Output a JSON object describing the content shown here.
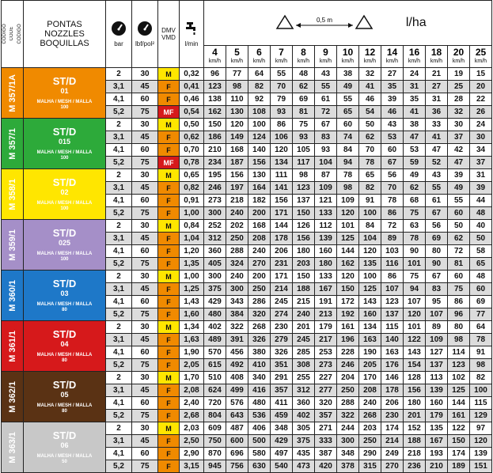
{
  "header": {
    "codes": [
      "CÓDIGO",
      "CODE",
      "CÓDIGO"
    ],
    "nozzles": [
      "PONTAS",
      "NOZZLES",
      "BOQUILLAS"
    ],
    "pressure_bar": "bar",
    "pressure_psi": "lbf/pol²",
    "dmv": "DMV",
    "vmd": "VMD",
    "flow_unit": "l/min",
    "spacing": "0,5 m",
    "rate_unit": "l/ha",
    "speed_unit": "km/h",
    "speeds": [
      "4",
      "5",
      "6",
      "7",
      "8",
      "9",
      "10",
      "12",
      "14",
      "16",
      "18",
      "20",
      "25"
    ]
  },
  "mesh_label": "MALHA / MESH / MALLA",
  "colors": {
    "dmv_M": "#ffe600",
    "dmv_F": "#f08a00",
    "dmv_MF": "#d6191b",
    "shade": "#dcdcdc"
  },
  "groups": [
    {
      "code": "M 357/1A",
      "type": "ST/D",
      "size": "01",
      "mesh": "100",
      "color": "#f08a00",
      "rows": [
        {
          "bar": "2",
          "psi": "30",
          "dmv": "M",
          "lmin": "0,32",
          "v": [
            "96",
            "77",
            "64",
            "55",
            "48",
            "43",
            "38",
            "32",
            "27",
            "24",
            "21",
            "19",
            "15"
          ]
        },
        {
          "bar": "3,1",
          "psi": "45",
          "dmv": "F",
          "lmin": "0,41",
          "v": [
            "123",
            "98",
            "82",
            "70",
            "62",
            "55",
            "49",
            "41",
            "35",
            "31",
            "27",
            "25",
            "20"
          ]
        },
        {
          "bar": "4,1",
          "psi": "60",
          "dmv": "F",
          "lmin": "0,46",
          "v": [
            "138",
            "110",
            "92",
            "79",
            "69",
            "61",
            "55",
            "46",
            "39",
            "35",
            "31",
            "28",
            "22"
          ]
        },
        {
          "bar": "5,2",
          "psi": "75",
          "dmv": "MF",
          "lmin": "0,54",
          "v": [
            "162",
            "130",
            "108",
            "93",
            "81",
            "72",
            "65",
            "54",
            "46",
            "41",
            "36",
            "32",
            "26"
          ]
        }
      ]
    },
    {
      "code": "M 357/1",
      "type": "ST/D",
      "size": "015",
      "mesh": "100",
      "color": "#2daa3a",
      "rows": [
        {
          "bar": "2",
          "psi": "30",
          "dmv": "M",
          "lmin": "0,50",
          "v": [
            "150",
            "120",
            "100",
            "86",
            "75",
            "67",
            "60",
            "50",
            "43",
            "38",
            "33",
            "30",
            "24"
          ]
        },
        {
          "bar": "3,1",
          "psi": "45",
          "dmv": "F",
          "lmin": "0,62",
          "v": [
            "186",
            "149",
            "124",
            "106",
            "93",
            "83",
            "74",
            "62",
            "53",
            "47",
            "41",
            "37",
            "30"
          ]
        },
        {
          "bar": "4,1",
          "psi": "60",
          "dmv": "F",
          "lmin": "0,70",
          "v": [
            "210",
            "168",
            "140",
            "120",
            "105",
            "93",
            "84",
            "70",
            "60",
            "53",
            "47",
            "42",
            "34"
          ]
        },
        {
          "bar": "5,2",
          "psi": "75",
          "dmv": "MF",
          "lmin": "0,78",
          "v": [
            "234",
            "187",
            "156",
            "134",
            "117",
            "104",
            "94",
            "78",
            "67",
            "59",
            "52",
            "47",
            "37"
          ]
        }
      ]
    },
    {
      "code": "M 358/1",
      "type": "ST/D",
      "size": "02",
      "mesh": "100",
      "color": "#ffe600",
      "rows": [
        {
          "bar": "2",
          "psi": "30",
          "dmv": "M",
          "lmin": "0,65",
          "v": [
            "195",
            "156",
            "130",
            "111",
            "98",
            "87",
            "78",
            "65",
            "56",
            "49",
            "43",
            "39",
            "31"
          ]
        },
        {
          "bar": "3,1",
          "psi": "45",
          "dmv": "F",
          "lmin": "0,82",
          "v": [
            "246",
            "197",
            "164",
            "141",
            "123",
            "109",
            "98",
            "82",
            "70",
            "62",
            "55",
            "49",
            "39"
          ]
        },
        {
          "bar": "4,1",
          "psi": "60",
          "dmv": "F",
          "lmin": "0,91",
          "v": [
            "273",
            "218",
            "182",
            "156",
            "137",
            "121",
            "109",
            "91",
            "78",
            "68",
            "61",
            "55",
            "44"
          ]
        },
        {
          "bar": "5,2",
          "psi": "75",
          "dmv": "F",
          "lmin": "1,00",
          "v": [
            "300",
            "240",
            "200",
            "171",
            "150",
            "133",
            "120",
            "100",
            "86",
            "75",
            "67",
            "60",
            "48"
          ]
        }
      ]
    },
    {
      "code": "M 359/1",
      "type": "ST/D",
      "size": "025",
      "mesh": "100",
      "color": "#a58fc8",
      "rows": [
        {
          "bar": "2",
          "psi": "30",
          "dmv": "M",
          "lmin": "0,84",
          "v": [
            "252",
            "202",
            "168",
            "144",
            "126",
            "112",
            "101",
            "84",
            "72",
            "63",
            "56",
            "50",
            "40"
          ]
        },
        {
          "bar": "3,1",
          "psi": "45",
          "dmv": "F",
          "lmin": "1,04",
          "v": [
            "312",
            "250",
            "208",
            "178",
            "156",
            "139",
            "125",
            "104",
            "89",
            "78",
            "69",
            "62",
            "50"
          ]
        },
        {
          "bar": "4,1",
          "psi": "60",
          "dmv": "F",
          "lmin": "1,20",
          "v": [
            "360",
            "288",
            "240",
            "206",
            "180",
            "160",
            "144",
            "120",
            "103",
            "90",
            "80",
            "72",
            "58"
          ]
        },
        {
          "bar": "5,2",
          "psi": "75",
          "dmv": "F",
          "lmin": "1,35",
          "v": [
            "405",
            "324",
            "270",
            "231",
            "203",
            "180",
            "162",
            "135",
            "116",
            "101",
            "90",
            "81",
            "65"
          ]
        }
      ]
    },
    {
      "code": "M 360/1",
      "type": "ST/D",
      "size": "03",
      "mesh": "80",
      "color": "#1e78c8",
      "rows": [
        {
          "bar": "2",
          "psi": "30",
          "dmv": "M",
          "lmin": "1,00",
          "v": [
            "300",
            "240",
            "200",
            "171",
            "150",
            "133",
            "120",
            "100",
            "86",
            "75",
            "67",
            "60",
            "48"
          ]
        },
        {
          "bar": "3,1",
          "psi": "45",
          "dmv": "F",
          "lmin": "1,25",
          "v": [
            "375",
            "300",
            "250",
            "214",
            "188",
            "167",
            "150",
            "125",
            "107",
            "94",
            "83",
            "75",
            "60"
          ]
        },
        {
          "bar": "4,1",
          "psi": "60",
          "dmv": "F",
          "lmin": "1,43",
          "v": [
            "429",
            "343",
            "286",
            "245",
            "215",
            "191",
            "172",
            "143",
            "123",
            "107",
            "95",
            "86",
            "69"
          ]
        },
        {
          "bar": "5,2",
          "psi": "75",
          "dmv": "F",
          "lmin": "1,60",
          "v": [
            "480",
            "384",
            "320",
            "274",
            "240",
            "213",
            "192",
            "160",
            "137",
            "120",
            "107",
            "96",
            "77"
          ]
        }
      ]
    },
    {
      "code": "M 361/1",
      "type": "ST/D",
      "size": "04",
      "mesh": "80",
      "color": "#d6191b",
      "rows": [
        {
          "bar": "2",
          "psi": "30",
          "dmv": "M",
          "lmin": "1,34",
          "v": [
            "402",
            "322",
            "268",
            "230",
            "201",
            "179",
            "161",
            "134",
            "115",
            "101",
            "89",
            "80",
            "64"
          ]
        },
        {
          "bar": "3,1",
          "psi": "45",
          "dmv": "F",
          "lmin": "1,63",
          "v": [
            "489",
            "391",
            "326",
            "279",
            "245",
            "217",
            "196",
            "163",
            "140",
            "122",
            "109",
            "98",
            "78"
          ]
        },
        {
          "bar": "4,1",
          "psi": "60",
          "dmv": "F",
          "lmin": "1,90",
          "v": [
            "570",
            "456",
            "380",
            "326",
            "285",
            "253",
            "228",
            "190",
            "163",
            "143",
            "127",
            "114",
            "91"
          ]
        },
        {
          "bar": "5,2",
          "psi": "75",
          "dmv": "F",
          "lmin": "2,05",
          "v": [
            "615",
            "492",
            "410",
            "351",
            "308",
            "273",
            "246",
            "205",
            "176",
            "154",
            "137",
            "123",
            "98"
          ]
        }
      ]
    },
    {
      "code": "M 362/1",
      "type": "ST/D",
      "size": "05",
      "mesh": "80",
      "color": "#5a3214",
      "rows": [
        {
          "bar": "2",
          "psi": "30",
          "dmv": "M",
          "lmin": "1,70",
          "v": [
            "510",
            "408",
            "340",
            "291",
            "255",
            "227",
            "204",
            "170",
            "146",
            "128",
            "113",
            "102",
            "82"
          ]
        },
        {
          "bar": "3,1",
          "psi": "45",
          "dmv": "F",
          "lmin": "2,08",
          "v": [
            "624",
            "499",
            "416",
            "357",
            "312",
            "277",
            "250",
            "208",
            "178",
            "156",
            "139",
            "125",
            "100"
          ]
        },
        {
          "bar": "4,1",
          "psi": "60",
          "dmv": "F",
          "lmin": "2,40",
          "v": [
            "720",
            "576",
            "480",
            "411",
            "360",
            "320",
            "288",
            "240",
            "206",
            "180",
            "160",
            "144",
            "115"
          ]
        },
        {
          "bar": "5,2",
          "psi": "75",
          "dmv": "F",
          "lmin": "2,68",
          "v": [
            "804",
            "643",
            "536",
            "459",
            "402",
            "357",
            "322",
            "268",
            "230",
            "201",
            "179",
            "161",
            "129"
          ]
        }
      ]
    },
    {
      "code": "M 363/1",
      "type": "ST/D",
      "size": "06",
      "mesh": "50",
      "color": "#c8c8c8",
      "rows": [
        {
          "bar": "2",
          "psi": "30",
          "dmv": "M",
          "lmin": "2,03",
          "v": [
            "609",
            "487",
            "406",
            "348",
            "305",
            "271",
            "244",
            "203",
            "174",
            "152",
            "135",
            "122",
            "97"
          ]
        },
        {
          "bar": "3,1",
          "psi": "45",
          "dmv": "F",
          "lmin": "2,50",
          "v": [
            "750",
            "600",
            "500",
            "429",
            "375",
            "333",
            "300",
            "250",
            "214",
            "188",
            "167",
            "150",
            "120"
          ]
        },
        {
          "bar": "4,1",
          "psi": "60",
          "dmv": "F",
          "lmin": "2,90",
          "v": [
            "870",
            "696",
            "580",
            "497",
            "435",
            "387",
            "348",
            "290",
            "249",
            "218",
            "193",
            "174",
            "139"
          ]
        },
        {
          "bar": "5,2",
          "psi": "75",
          "dmv": "F",
          "lmin": "3,15",
          "v": [
            "945",
            "756",
            "630",
            "540",
            "473",
            "420",
            "378",
            "315",
            "270",
            "236",
            "210",
            "189",
            "151"
          ]
        }
      ]
    }
  ]
}
